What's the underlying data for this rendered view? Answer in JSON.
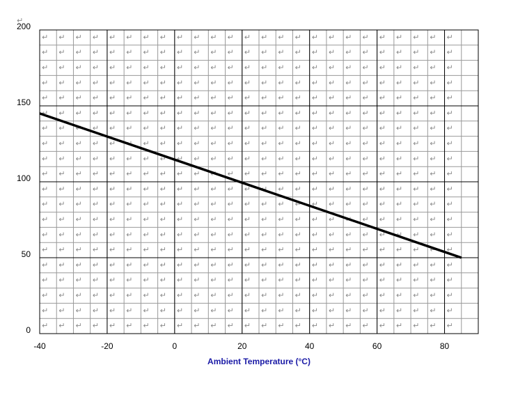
{
  "chart_data": {
    "type": "line",
    "xlabel": "Ambient Temperature (°C)",
    "x": [
      -40,
      85
    ],
    "values": [
      145,
      50
    ],
    "color": "#000000",
    "xlim": [
      -40,
      90
    ],
    "xticks": [
      -40,
      -20,
      0,
      20,
      40,
      60,
      80
    ],
    "ylim": [
      0,
      200
    ],
    "yticks": [
      0,
      50,
      100,
      150,
      200
    ],
    "grid": true
  }
}
